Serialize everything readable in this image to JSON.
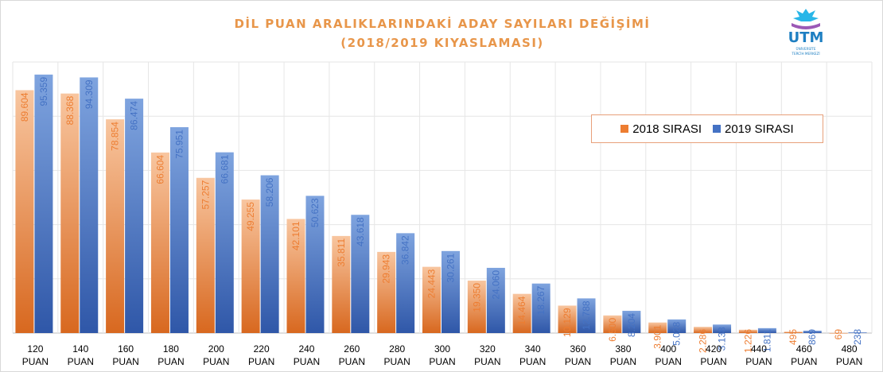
{
  "title": {
    "line1": "DİL PUAN ARALIKLARINDAKİ  ADAY SAYILARI  DEĞİŞİMİ",
    "line2": "(2018/2019  KIYASLAMASI)"
  },
  "logo": {
    "text": "UTM",
    "subtext": "ÜNİVERSİTE TERCİH MERKEZİ"
  },
  "chart_data": {
    "type": "bar",
    "title": "DİL PUAN ARALIKLARINDAKİ  ADAY SAYILARI  DEĞİŞİMİ (2018/2019  KIYASLAMASI)",
    "categories": [
      "120 PUAN",
      "140 PUAN",
      "160 PUAN",
      "180 PUAN",
      "200 PUAN",
      "220 PUAN",
      "240 PUAN",
      "260 PUAN",
      "280 PUAN",
      "300 PUAN",
      "320 PUAN",
      "340 PUAN",
      "360 PUAN",
      "380 PUAN",
      "400 PUAN",
      "420 PUAN",
      "440 PUAN",
      "460 PUAN",
      "480 PUAN"
    ],
    "category_lines": [
      [
        "120",
        "PUAN"
      ],
      [
        "140",
        "PUAN"
      ],
      [
        "160",
        "PUAN"
      ],
      [
        "180",
        "PUAN"
      ],
      [
        "200",
        "PUAN"
      ],
      [
        "220",
        "PUAN"
      ],
      [
        "240",
        "PUAN"
      ],
      [
        "260",
        "PUAN"
      ],
      [
        "280",
        "PUAN"
      ],
      [
        "300",
        "PUAN"
      ],
      [
        "320",
        "PUAN"
      ],
      [
        "340",
        "PUAN"
      ],
      [
        "360",
        "PUAN"
      ],
      [
        "380",
        "PUAN"
      ],
      [
        "400",
        "PUAN"
      ],
      [
        "420",
        "PUAN"
      ],
      [
        "440",
        "PUAN"
      ],
      [
        "460",
        "PUAN"
      ],
      [
        "480",
        "PUAN"
      ]
    ],
    "series": [
      {
        "name": "2018 SIRASI",
        "color": "#ed7d31",
        "values": [
          89604,
          88368,
          78854,
          66604,
          57257,
          49255,
          42101,
          35811,
          29943,
          24443,
          19350,
          14464,
          10129,
          6500,
          3901,
          2286,
          1226,
          495,
          69
        ],
        "labels": [
          "89.604",
          "88.368",
          "78.854",
          "66.604",
          "57.257",
          "49.255",
          "42.101",
          "35.811",
          "29.943",
          "24.443",
          "19.350",
          "14.464",
          "10.129",
          "6.500",
          "3.901",
          "2.286",
          "1.226",
          "495",
          "69"
        ]
      },
      {
        "name": "2019 SIRASI",
        "color": "#4472c4",
        "values": [
          95359,
          94309,
          86474,
          75951,
          66681,
          58206,
          50623,
          43618,
          36842,
          30261,
          24060,
          18267,
          12788,
          8204,
          5028,
          3138,
          1811,
          869,
          238
        ],
        "labels": [
          "95.359",
          "94.309",
          "86.474",
          "75.951",
          "66.681",
          "58.206",
          "50.623",
          "43.618",
          "36.842",
          "30.261",
          "24.060",
          "18.267",
          "12.788",
          "8.204",
          "5.028",
          "3.138",
          "1.811",
          "869",
          "238"
        ]
      }
    ],
    "ylim": [
      0,
      100000
    ],
    "y_axis_shown": false,
    "grid": true,
    "legend_position": "top-right",
    "data_labels": "vertical, inside top of bars"
  }
}
